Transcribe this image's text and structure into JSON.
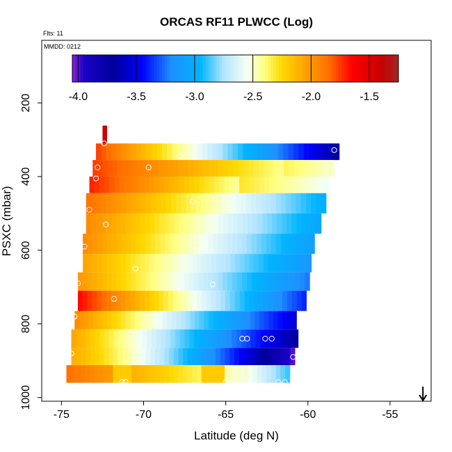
{
  "chart_data": {
    "type": "heatmap",
    "title": "ORCAS RF11 PLWCC (Log)",
    "subtitle_left": "Flts: 11",
    "corner_label": "MMDD: 0212",
    "xlabel": "Latitude (deg N)",
    "ylabel": "PSXC (mbar)",
    "xlim": [
      -76.2,
      -52.5
    ],
    "ylim": [
      1010,
      30
    ],
    "y_reversed": true,
    "x_ticks": [
      -75,
      -70,
      -65,
      -60,
      -55
    ],
    "x_tick_labels": [
      "-75",
      "-70",
      "-65",
      "-60",
      "-55"
    ],
    "y_ticks": [
      200,
      400,
      600,
      800,
      1000
    ],
    "y_tick_labels": [
      "200",
      "400",
      "600",
      "800",
      "1000"
    ],
    "colorbar": {
      "min": -4.05,
      "max": -1.25,
      "ticks": [
        -4.0,
        -3.5,
        -3.0,
        -2.5,
        -2.0,
        -1.5
      ],
      "tick_labels": [
        "-4.0",
        "-3.5",
        "-3.0",
        "-2.5",
        "-2.0",
        "-1.5"
      ],
      "stops": [
        {
          "v": -4.05,
          "color": "#8a1ee0"
        },
        {
          "v": -3.95,
          "color": "#1a00c8"
        },
        {
          "v": -3.7,
          "color": "#00009a"
        },
        {
          "v": -3.45,
          "color": "#0000ff"
        },
        {
          "v": -3.2,
          "color": "#1e90ff"
        },
        {
          "v": -2.95,
          "color": "#00b4ff"
        },
        {
          "v": -2.75,
          "color": "#b4e4ff"
        },
        {
          "v": -2.55,
          "color": "#f4fff4"
        },
        {
          "v": -2.4,
          "color": "#ffff80"
        },
        {
          "v": -2.25,
          "color": "#ffd800"
        },
        {
          "v": -2.05,
          "color": "#ffa200"
        },
        {
          "v": -1.85,
          "color": "#ff7000"
        },
        {
          "v": -1.65,
          "color": "#ff0000"
        },
        {
          "v": -1.4,
          "color": "#c80000"
        },
        {
          "v": -1.25,
          "color": "#a02828"
        }
      ]
    },
    "bands": [
      {
        "p_top": 262,
        "p_bot": 310,
        "x_start": -72.5,
        "x_end": -72.25,
        "v_start": -1.42,
        "v_end": -1.42
      },
      {
        "p_top": 310,
        "p_bot": 355,
        "x_start": -72.9,
        "x_end": -58.1,
        "v_start": -1.75,
        "v_end": -3.7
      },
      {
        "p_top": 355,
        "p_bot": 400,
        "x_start": -73.1,
        "x_end": -58.4,
        "v_start": -1.75,
        "v_end": -2.6,
        "gap": {
          "from": -61.6,
          "value": -2.35
        }
      },
      {
        "p_top": 400,
        "p_bot": 445,
        "x_start": -73.3,
        "x_end": -58.7,
        "v_start": -1.7,
        "v_end": -2.9,
        "gap": {
          "from": -64.2,
          "value": -2.3
        }
      },
      {
        "p_top": 445,
        "p_bot": 500,
        "x_start": -73.5,
        "x_end": -58.9,
        "v_start": -1.85,
        "v_end": -3.0
      },
      {
        "p_top": 500,
        "p_bot": 555,
        "x_start": -73.5,
        "x_end": -59.2,
        "v_start": -1.95,
        "v_end": -3.05
      },
      {
        "p_top": 555,
        "p_bot": 610,
        "x_start": -73.7,
        "x_end": -59.6,
        "v_start": -1.95,
        "v_end": -3.1
      },
      {
        "p_top": 610,
        "p_bot": 660,
        "x_start": -73.7,
        "x_end": -59.8,
        "v_start": -2.05,
        "v_end": -3.15
      },
      {
        "p_top": 660,
        "p_bot": 710,
        "x_start": -74.0,
        "x_end": -59.9,
        "v_start": -2.0,
        "v_end": -3.25
      },
      {
        "p_top": 710,
        "p_bot": 765,
        "x_start": -74.0,
        "x_end": -60.1,
        "v_start": -1.65,
        "v_end": -3.4
      },
      {
        "p_top": 765,
        "p_bot": 815,
        "x_start": -74.2,
        "x_end": -60.7,
        "v_start": -1.95,
        "v_end": -3.55
      },
      {
        "p_top": 815,
        "p_bot": 865,
        "x_start": -74.4,
        "x_end": -60.6,
        "v_start": -2.05,
        "v_end": -3.7
      },
      {
        "p_top": 865,
        "p_bot": 912,
        "x_start": -74.4,
        "x_end": -60.8,
        "v_start": -2.1,
        "v_end": -4.02,
        "cold": true
      },
      {
        "p_top": 912,
        "p_bot": 960,
        "x_start": -74.7,
        "x_end": -61.1,
        "v_start": -1.85,
        "v_end": -2.7,
        "patchy": true
      }
    ],
    "points": [
      {
        "x": -72.4,
        "p": 310
      },
      {
        "x": -67.8,
        "p": 345
      },
      {
        "x": -58.4,
        "p": 328
      },
      {
        "x": -72.8,
        "p": 375
      },
      {
        "x": -69.7,
        "p": 375
      },
      {
        "x": -72.9,
        "p": 405
      },
      {
        "x": -67.0,
        "p": 468
      },
      {
        "x": -73.3,
        "p": 490
      },
      {
        "x": -72.3,
        "p": 530
      },
      {
        "x": -73.6,
        "p": 590
      },
      {
        "x": -70.5,
        "p": 650
      },
      {
        "x": -74.0,
        "p": 690
      },
      {
        "x": -65.8,
        "p": 693
      },
      {
        "x": -71.8,
        "p": 732
      },
      {
        "x": -74.2,
        "p": 780
      },
      {
        "x": -64.0,
        "p": 840
      },
      {
        "x": -63.7,
        "p": 840
      },
      {
        "x": -62.6,
        "p": 840
      },
      {
        "x": -62.2,
        "p": 840
      },
      {
        "x": -74.4,
        "p": 880
      },
      {
        "x": -60.9,
        "p": 890
      },
      {
        "x": -75.0,
        "p": 960
      },
      {
        "x": -71.3,
        "p": 958
      },
      {
        "x": -71.1,
        "p": 958
      },
      {
        "x": -65.0,
        "p": 958
      },
      {
        "x": -64.6,
        "p": 958
      },
      {
        "x": -63.4,
        "p": 958
      },
      {
        "x": -61.8,
        "p": 958
      },
      {
        "x": -61.4,
        "p": 958
      }
    ],
    "arrow": {
      "x": -53.0,
      "direction": "down"
    }
  }
}
